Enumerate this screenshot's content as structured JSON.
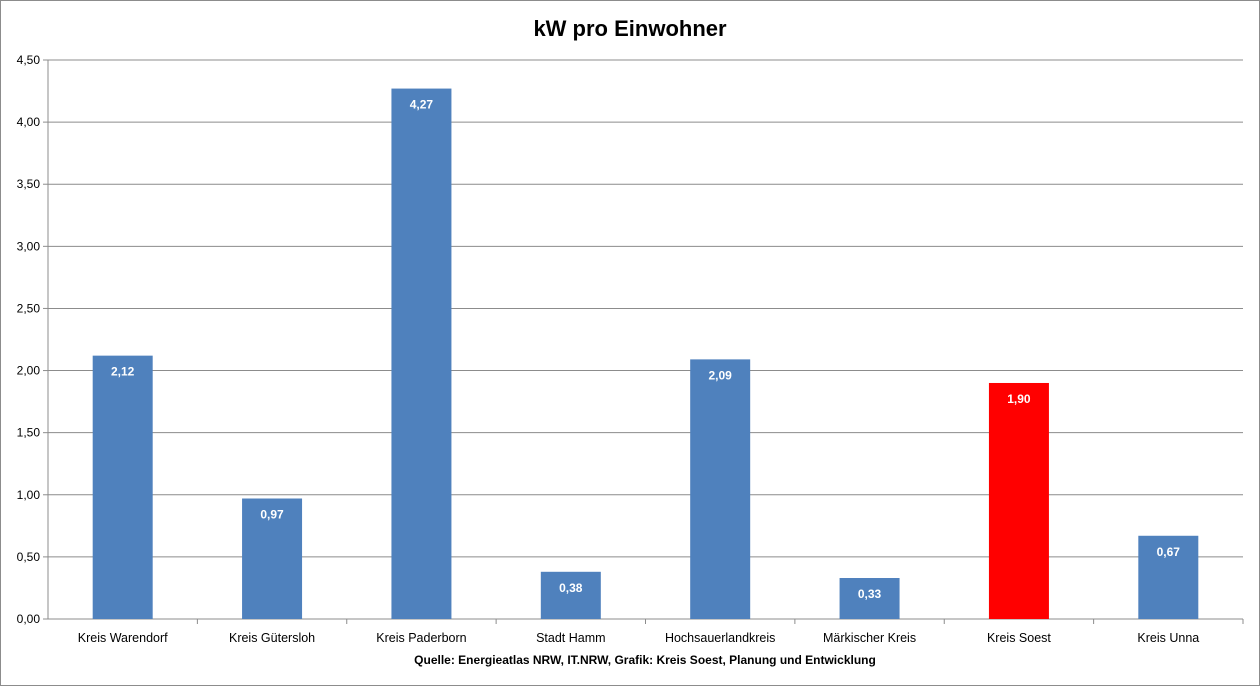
{
  "chart_data": {
    "type": "bar",
    "title": "kW pro Einwohner",
    "xlabel": "Quelle: Energieatlas NRW, IT.NRW, Grafik: Kreis Soest, Planung und Entwicklung",
    "ylabel": "",
    "ylim": [
      0,
      4.5
    ],
    "yticks": [
      "0,00",
      "0,50",
      "1,00",
      "1,50",
      "2,00",
      "2,50",
      "3,00",
      "3,50",
      "4,00",
      "4,50"
    ],
    "grid": true,
    "legend": "none",
    "categories": [
      "Kreis Warendorf",
      "Kreis Gütersloh",
      "Kreis Paderborn",
      "Stadt Hamm",
      "Hochsauerlandkreis",
      "Märkischer Kreis",
      "Kreis Soest",
      "Kreis Unna"
    ],
    "values": [
      2.12,
      0.97,
      4.27,
      0.38,
      2.09,
      0.33,
      1.9,
      0.67
    ],
    "data_labels": [
      "2,12",
      "0,97",
      "4,27",
      "0,38",
      "2,09",
      "0,33",
      "1,90",
      "0,67"
    ],
    "bar_colors": [
      "#4f81bd",
      "#4f81bd",
      "#4f81bd",
      "#4f81bd",
      "#4f81bd",
      "#4f81bd",
      "#ff0000",
      "#4f81bd"
    ],
    "colors": {
      "default_bar": "#4f81bd",
      "highlight_bar": "#ff0000",
      "grid": "#8c8c8c"
    }
  }
}
